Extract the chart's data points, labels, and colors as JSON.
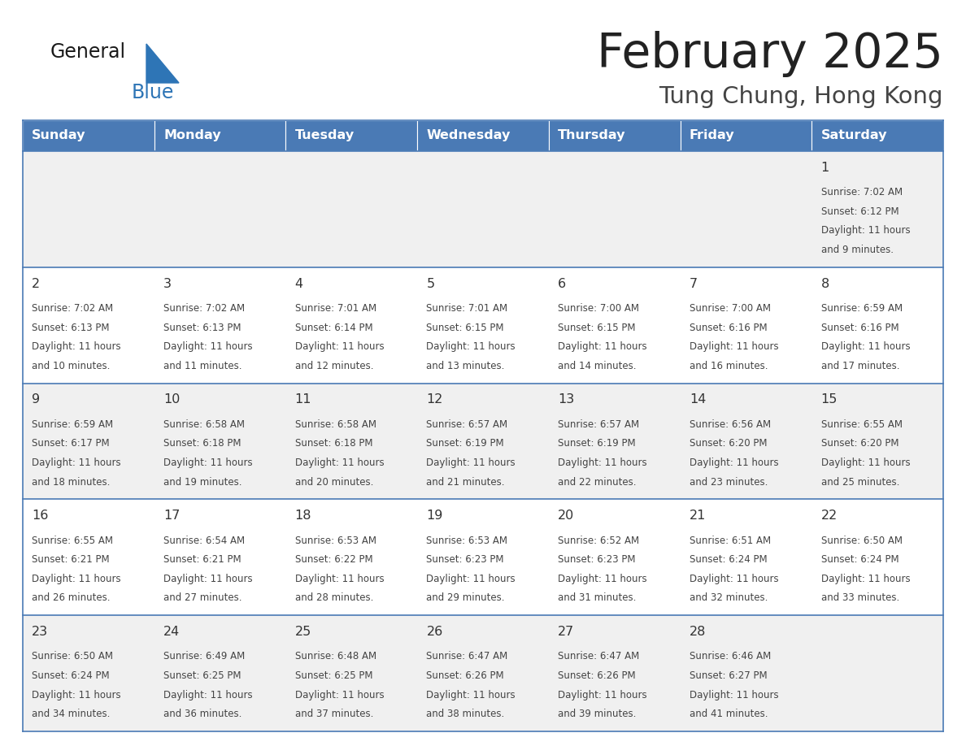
{
  "title": "February 2025",
  "subtitle": "Tung Chung, Hong Kong",
  "days_of_week": [
    "Sunday",
    "Monday",
    "Tuesday",
    "Wednesday",
    "Thursday",
    "Friday",
    "Saturday"
  ],
  "header_bg": "#4a7ab5",
  "header_text": "#FFFFFF",
  "row_bg_odd": "#f0f0f0",
  "row_bg_even": "#FFFFFF",
  "border_color": "#4a7ab5",
  "day_number_color": "#333333",
  "text_color": "#444444",
  "title_color": "#222222",
  "subtitle_color": "#444444",
  "logo_general_color": "#1a1a1a",
  "logo_blue_color": "#2E75B6",
  "calendar_data": [
    {
      "day": 1,
      "col": 6,
      "row": 0,
      "sunrise": "7:02 AM",
      "sunset": "6:12 PM",
      "daylight_hours": 11,
      "daylight_minutes": 9
    },
    {
      "day": 2,
      "col": 0,
      "row": 1,
      "sunrise": "7:02 AM",
      "sunset": "6:13 PM",
      "daylight_hours": 11,
      "daylight_minutes": 10
    },
    {
      "day": 3,
      "col": 1,
      "row": 1,
      "sunrise": "7:02 AM",
      "sunset": "6:13 PM",
      "daylight_hours": 11,
      "daylight_minutes": 11
    },
    {
      "day": 4,
      "col": 2,
      "row": 1,
      "sunrise": "7:01 AM",
      "sunset": "6:14 PM",
      "daylight_hours": 11,
      "daylight_minutes": 12
    },
    {
      "day": 5,
      "col": 3,
      "row": 1,
      "sunrise": "7:01 AM",
      "sunset": "6:15 PM",
      "daylight_hours": 11,
      "daylight_minutes": 13
    },
    {
      "day": 6,
      "col": 4,
      "row": 1,
      "sunrise": "7:00 AM",
      "sunset": "6:15 PM",
      "daylight_hours": 11,
      "daylight_minutes": 14
    },
    {
      "day": 7,
      "col": 5,
      "row": 1,
      "sunrise": "7:00 AM",
      "sunset": "6:16 PM",
      "daylight_hours": 11,
      "daylight_minutes": 16
    },
    {
      "day": 8,
      "col": 6,
      "row": 1,
      "sunrise": "6:59 AM",
      "sunset": "6:16 PM",
      "daylight_hours": 11,
      "daylight_minutes": 17
    },
    {
      "day": 9,
      "col": 0,
      "row": 2,
      "sunrise": "6:59 AM",
      "sunset": "6:17 PM",
      "daylight_hours": 11,
      "daylight_minutes": 18
    },
    {
      "day": 10,
      "col": 1,
      "row": 2,
      "sunrise": "6:58 AM",
      "sunset": "6:18 PM",
      "daylight_hours": 11,
      "daylight_minutes": 19
    },
    {
      "day": 11,
      "col": 2,
      "row": 2,
      "sunrise": "6:58 AM",
      "sunset": "6:18 PM",
      "daylight_hours": 11,
      "daylight_minutes": 20
    },
    {
      "day": 12,
      "col": 3,
      "row": 2,
      "sunrise": "6:57 AM",
      "sunset": "6:19 PM",
      "daylight_hours": 11,
      "daylight_minutes": 21
    },
    {
      "day": 13,
      "col": 4,
      "row": 2,
      "sunrise": "6:57 AM",
      "sunset": "6:19 PM",
      "daylight_hours": 11,
      "daylight_minutes": 22
    },
    {
      "day": 14,
      "col": 5,
      "row": 2,
      "sunrise": "6:56 AM",
      "sunset": "6:20 PM",
      "daylight_hours": 11,
      "daylight_minutes": 23
    },
    {
      "day": 15,
      "col": 6,
      "row": 2,
      "sunrise": "6:55 AM",
      "sunset": "6:20 PM",
      "daylight_hours": 11,
      "daylight_minutes": 25
    },
    {
      "day": 16,
      "col": 0,
      "row": 3,
      "sunrise": "6:55 AM",
      "sunset": "6:21 PM",
      "daylight_hours": 11,
      "daylight_minutes": 26
    },
    {
      "day": 17,
      "col": 1,
      "row": 3,
      "sunrise": "6:54 AM",
      "sunset": "6:21 PM",
      "daylight_hours": 11,
      "daylight_minutes": 27
    },
    {
      "day": 18,
      "col": 2,
      "row": 3,
      "sunrise": "6:53 AM",
      "sunset": "6:22 PM",
      "daylight_hours": 11,
      "daylight_minutes": 28
    },
    {
      "day": 19,
      "col": 3,
      "row": 3,
      "sunrise": "6:53 AM",
      "sunset": "6:23 PM",
      "daylight_hours": 11,
      "daylight_minutes": 29
    },
    {
      "day": 20,
      "col": 4,
      "row": 3,
      "sunrise": "6:52 AM",
      "sunset": "6:23 PM",
      "daylight_hours": 11,
      "daylight_minutes": 31
    },
    {
      "day": 21,
      "col": 5,
      "row": 3,
      "sunrise": "6:51 AM",
      "sunset": "6:24 PM",
      "daylight_hours": 11,
      "daylight_minutes": 32
    },
    {
      "day": 22,
      "col": 6,
      "row": 3,
      "sunrise": "6:50 AM",
      "sunset": "6:24 PM",
      "daylight_hours": 11,
      "daylight_minutes": 33
    },
    {
      "day": 23,
      "col": 0,
      "row": 4,
      "sunrise": "6:50 AM",
      "sunset": "6:24 PM",
      "daylight_hours": 11,
      "daylight_minutes": 34
    },
    {
      "day": 24,
      "col": 1,
      "row": 4,
      "sunrise": "6:49 AM",
      "sunset": "6:25 PM",
      "daylight_hours": 11,
      "daylight_minutes": 36
    },
    {
      "day": 25,
      "col": 2,
      "row": 4,
      "sunrise": "6:48 AM",
      "sunset": "6:25 PM",
      "daylight_hours": 11,
      "daylight_minutes": 37
    },
    {
      "day": 26,
      "col": 3,
      "row": 4,
      "sunrise": "6:47 AM",
      "sunset": "6:26 PM",
      "daylight_hours": 11,
      "daylight_minutes": 38
    },
    {
      "day": 27,
      "col": 4,
      "row": 4,
      "sunrise": "6:47 AM",
      "sunset": "6:26 PM",
      "daylight_hours": 11,
      "daylight_minutes": 39
    },
    {
      "day": 28,
      "col": 5,
      "row": 4,
      "sunrise": "6:46 AM",
      "sunset": "6:27 PM",
      "daylight_hours": 11,
      "daylight_minutes": 41
    }
  ]
}
